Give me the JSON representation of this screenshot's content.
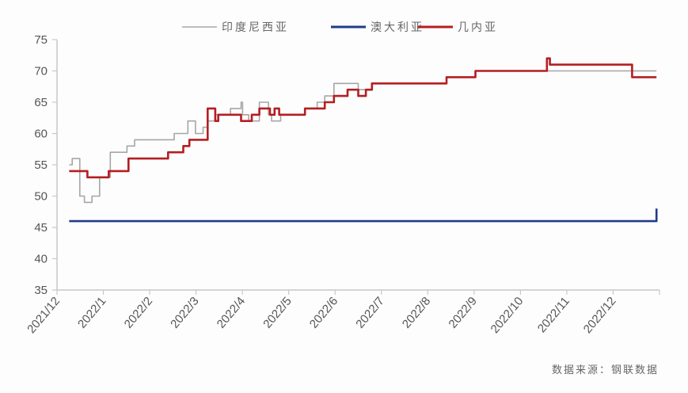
{
  "chart_data": {
    "type": "line",
    "title": "",
    "xlabel": "",
    "ylabel": "",
    "ylim": [
      35,
      75
    ],
    "yticks": [
      "35",
      "40",
      "45",
      "50",
      "55",
      "60",
      "65",
      "70",
      "75"
    ],
    "xlim": [
      "2021-12-01",
      "2023-01-01"
    ],
    "xticks": [
      "2021/12",
      "2022/1",
      "2022/2",
      "2022/3",
      "2022/4",
      "2022/5",
      "2022/6",
      "2022/7",
      "2022/8",
      "2022/9",
      "2022/10",
      "2022/11",
      "2022/12"
    ],
    "grid": false,
    "legend_position": "top",
    "step": true,
    "series": [
      {
        "name": "印度尼西亚",
        "color": "#a6a6a6",
        "points": [
          [
            "2021-12-09",
            55
          ],
          [
            "2021-12-11",
            56
          ],
          [
            "2021-12-16",
            50
          ],
          [
            "2021-12-19",
            49
          ],
          [
            "2021-12-24",
            50
          ],
          [
            "2021-12-29",
            53
          ],
          [
            "2022-01-05",
            57
          ],
          [
            "2022-01-16",
            58
          ],
          [
            "2022-01-21",
            59
          ],
          [
            "2022-02-16",
            60
          ],
          [
            "2022-02-25",
            62
          ],
          [
            "2022-03-02",
            60
          ],
          [
            "2022-03-07",
            61
          ],
          [
            "2022-03-10",
            62
          ],
          [
            "2022-03-15",
            63
          ],
          [
            "2022-03-25",
            64
          ],
          [
            "2022-04-01",
            65
          ],
          [
            "2022-04-02",
            63
          ],
          [
            "2022-04-06",
            62
          ],
          [
            "2022-04-13",
            65
          ],
          [
            "2022-04-19",
            63
          ],
          [
            "2022-04-21",
            62
          ],
          [
            "2022-04-27",
            63
          ],
          [
            "2022-05-13",
            64
          ],
          [
            "2022-05-21",
            65
          ],
          [
            "2022-05-26",
            66
          ],
          [
            "2022-06-01",
            68
          ],
          [
            "2022-06-17",
            67
          ],
          [
            "2022-06-26",
            68
          ],
          [
            "2022-08-14",
            69
          ],
          [
            "2022-09-02",
            70
          ],
          [
            "2022-12-30",
            70
          ]
        ]
      },
      {
        "name": "澳大利亚",
        "color": "#1f3c88",
        "points": [
          [
            "2021-12-09",
            46
          ],
          [
            "2022-12-29",
            46
          ],
          [
            "2022-12-30",
            48
          ]
        ]
      },
      {
        "name": "几内亚",
        "color": "#b41e22",
        "points": [
          [
            "2021-12-09",
            54
          ],
          [
            "2021-12-21",
            53
          ],
          [
            "2022-01-04",
            54
          ],
          [
            "2022-01-17",
            56
          ],
          [
            "2022-02-12",
            57
          ],
          [
            "2022-02-22",
            58
          ],
          [
            "2022-02-26",
            59
          ],
          [
            "2022-03-10",
            64
          ],
          [
            "2022-03-15",
            62
          ],
          [
            "2022-03-17",
            63
          ],
          [
            "2022-04-01",
            62
          ],
          [
            "2022-04-08",
            63
          ],
          [
            "2022-04-13",
            64
          ],
          [
            "2022-04-20",
            63
          ],
          [
            "2022-04-23",
            64
          ],
          [
            "2022-04-26",
            63
          ],
          [
            "2022-05-13",
            64
          ],
          [
            "2022-05-26",
            65
          ],
          [
            "2022-06-01",
            66
          ],
          [
            "2022-06-10",
            67
          ],
          [
            "2022-06-17",
            66
          ],
          [
            "2022-06-22",
            67
          ],
          [
            "2022-06-26",
            68
          ],
          [
            "2022-08-14",
            69
          ],
          [
            "2022-09-02",
            70
          ],
          [
            "2022-10-19",
            72
          ],
          [
            "2022-10-21",
            71
          ],
          [
            "2022-12-14",
            69
          ],
          [
            "2022-12-30",
            69
          ]
        ]
      }
    ],
    "source": "数据来源：钢联数据"
  }
}
